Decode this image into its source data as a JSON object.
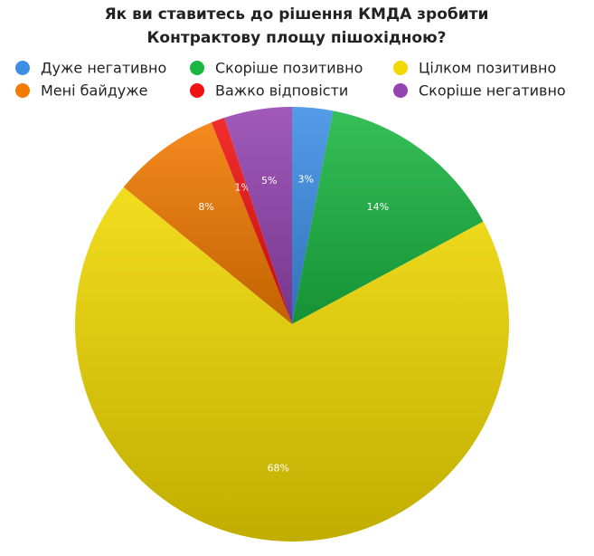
{
  "chart_data": {
    "type": "pie",
    "title": [
      "Як ви ставитесь до рішення КМДА зробити",
      "Контрактову площу пішохідною?"
    ],
    "categories": [
      "Дуже негативно",
      "Скоріше позитивно",
      "Цілком позитивно",
      "Мені байдуже",
      "Важко відповісти",
      "Скоріше негативно"
    ],
    "values": [
      3,
      14,
      68,
      8,
      1,
      5
    ],
    "value_labels": [
      "3%",
      "14%",
      "68%",
      "8%",
      "1%",
      "5%"
    ],
    "colors": [
      "#3d8fe6",
      "#1ab641",
      "#f0d800",
      "#f27a00",
      "#f01212",
      "#9444b0"
    ],
    "legend": "top"
  }
}
